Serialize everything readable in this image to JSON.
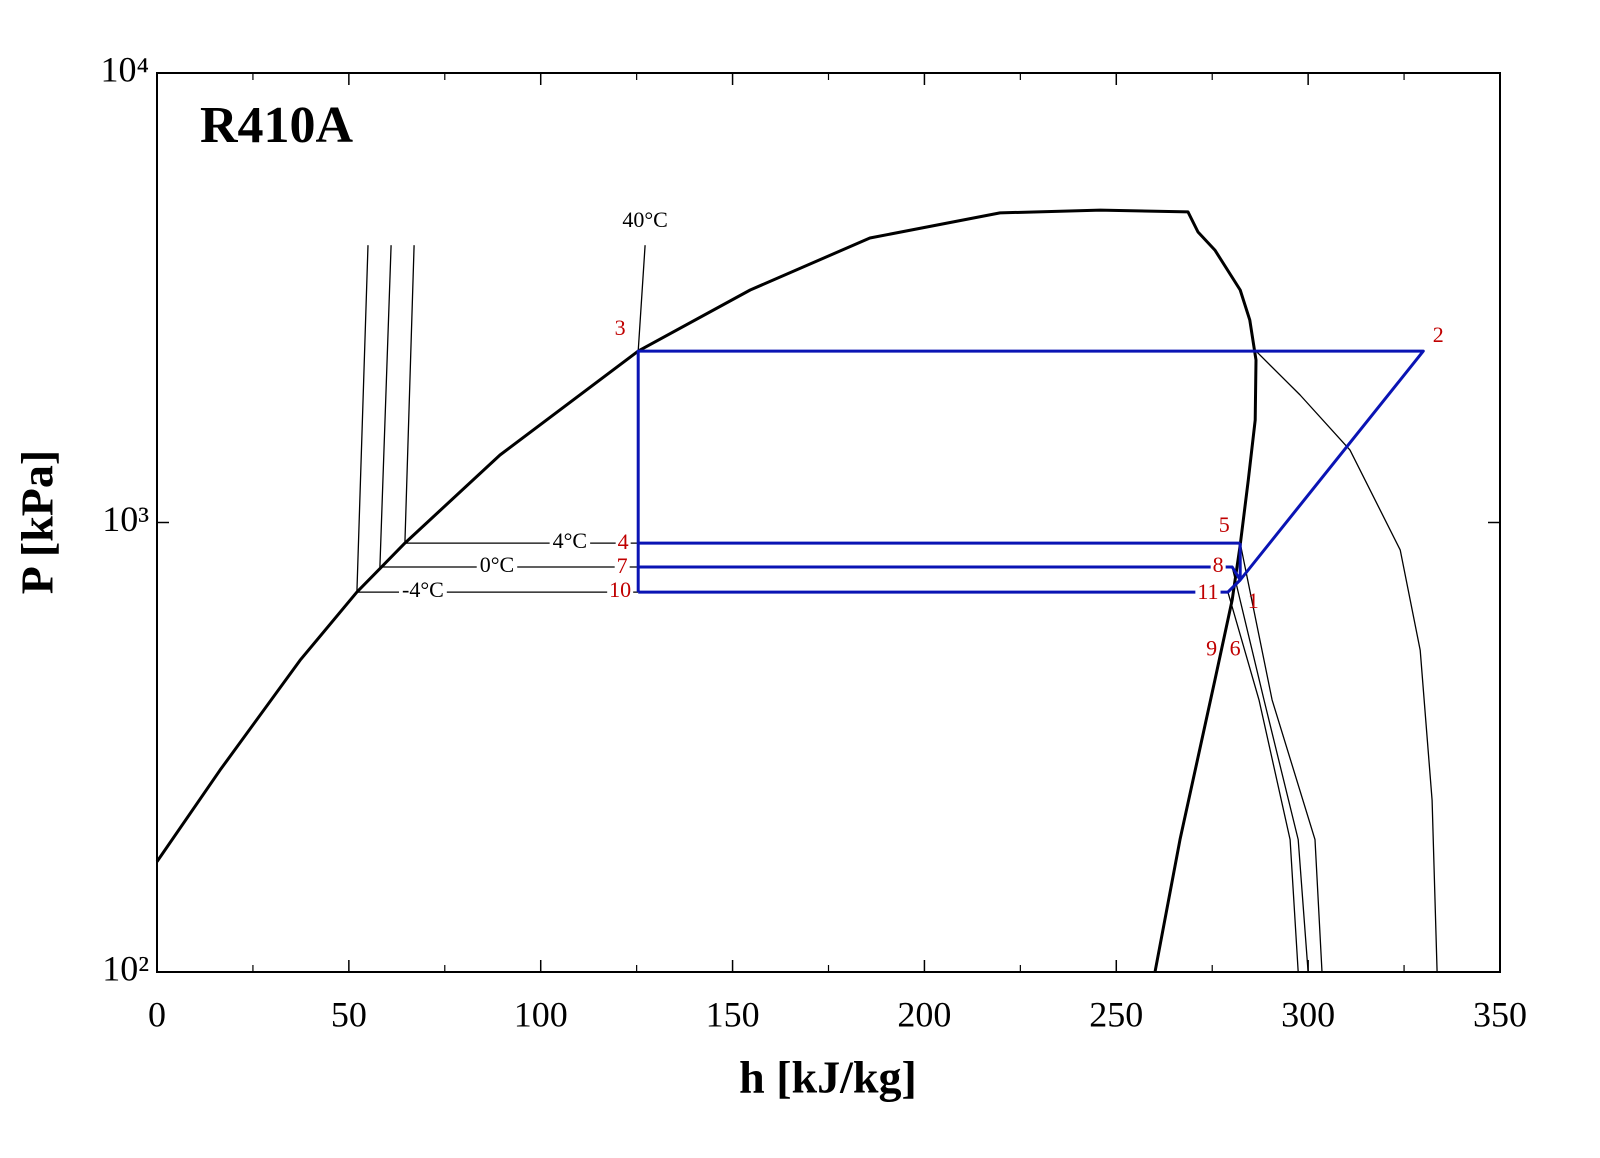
{
  "chart_data": {
    "type": "line",
    "title": "R410A",
    "xlabel": "h [kJ/kg]",
    "ylabel": "P [kPa]",
    "xlim": [
      0,
      350
    ],
    "ylim": [
      100,
      10000
    ],
    "yscale": "log",
    "xticks": [
      0,
      50,
      100,
      150,
      200,
      250,
      300,
      350
    ],
    "xminorticks": [
      25,
      75,
      125,
      175,
      225,
      275,
      325
    ],
    "yticks": [
      {
        "value": 100,
        "label": "10²"
      },
      {
        "value": 1000,
        "label": "10³"
      },
      {
        "value": 10000,
        "label": "10⁴"
      }
    ],
    "series": [
      {
        "color": "#000000",
        "linewidth": 3,
        "x": [
          0,
          16.4,
          37.3,
          52.1,
          64.6,
          89.4,
          125.4,
          154.6,
          185.8,
          219.7,
          245.8,
          268.7,
          271.3,
          275.7,
          282.3,
          284.8,
          286.4,
          286.2,
          284.4,
          282.3,
          280.2,
          275.7,
          266.6,
          260.1
        ],
        "values": [
          176,
          281,
          494,
          700,
          900,
          1413,
          2406,
          3290,
          4295,
          4884,
          4955,
          4909,
          4429,
          4036,
          3290,
          2820,
          2299,
          1690,
          1244,
          891,
          673,
          446,
          197,
          100
        ]
      },
      {
        "color": "#000000",
        "linewidth": 1.3,
        "x": [
          127.2,
          125.4,
          null,
          286.4,
          297.9,
          310.9,
          324,
          329.2,
          332.3,
          333.6
        ],
        "values": [
          4140,
          2406,
          null,
          2406,
          1922,
          1449,
          869,
          520,
          241,
          100
        ]
      },
      {
        "color": "#000000",
        "linewidth": 1.3,
        "x": [
          67.0,
          64.6,
          125.4,
          null,
          282.3,
          290.6,
          301.8,
          303.6
        ],
        "values": [
          4140,
          900,
          900,
          null,
          900,
          403,
          197,
          100
        ]
      },
      {
        "color": "#000000",
        "linewidth": 1.3,
        "x": [
          61.0,
          58.1,
          125.4,
          null,
          280.2,
          288.5,
          297.4,
          300.0
        ],
        "values": [
          4140,
          796,
          796,
          null,
          796,
          403,
          197,
          100
        ]
      },
      {
        "color": "#000000",
        "linewidth": 1.3,
        "x": [
          55.0,
          52.1,
          125.4,
          null,
          279.1,
          287.2,
          295.3,
          297.4
        ],
        "values": [
          4140,
          700,
          700,
          null,
          700,
          403,
          197,
          100
        ]
      },
      {
        "color": "#0a14b4",
        "linewidth": 3,
        "x": [
          125.4,
          125.4,
          330,
          282.3,
          282.3,
          null,
          125.4,
          282.3,
          null,
          125.4,
          280.2,
          282.3,
          null,
          125.4,
          279.1,
          282.3
        ],
        "values": [
          700,
          2406,
          2406,
          745,
          900,
          null,
          900,
          900,
          null,
          796,
          796,
          745,
          null,
          700,
          700,
          745
        ]
      }
    ],
    "points_color": "#c00000",
    "points": [
      {
        "label": "1",
        "h": 282.3,
        "P": 745
      },
      {
        "label": "2",
        "h": 330,
        "P": 2406
      },
      {
        "label": "3",
        "h": 125.4,
        "P": 2406
      },
      {
        "label": "4",
        "h": 125.4,
        "P": 900
      },
      {
        "label": "5",
        "h": 282.3,
        "P": 900
      },
      {
        "label": "6",
        "h": 281.5,
        "P": 600
      },
      {
        "label": "7",
        "h": 125.4,
        "P": 796
      },
      {
        "label": "8",
        "h": 280.2,
        "P": 796
      },
      {
        "label": "9",
        "h": 277.2,
        "P": 560
      },
      {
        "label": "10",
        "h": 125.4,
        "P": 700
      },
      {
        "label": "11",
        "h": 279.1,
        "P": 700
      }
    ],
    "isotherm_labels": [
      {
        "label": "40°C",
        "h": 127.2,
        "P": 4664
      },
      {
        "label": "4°C",
        "h": 107.6,
        "P": 900
      },
      {
        "label": "0°C",
        "h": 88.6,
        "P": 796
      },
      {
        "label": "-4°C",
        "h": 69.3,
        "P": 700
      }
    ]
  }
}
